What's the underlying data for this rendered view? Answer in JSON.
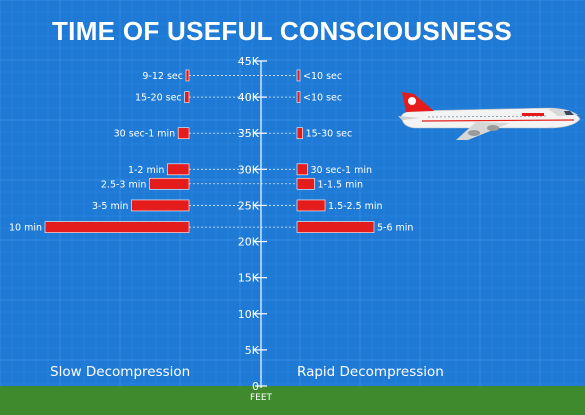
{
  "title": "TIME OF USEFUL CONSCIOUSNESS",
  "panels": {
    "left_label": "Slow Decompression",
    "right_label": "Rapid Decompression"
  },
  "colors": {
    "sky": "#1f7ad6",
    "grid": "#3b93e6",
    "bar": "#e41c1c",
    "text": "#ffffff",
    "ground": "#3f8a2c"
  },
  "icons": {
    "airplane": "jet-airliner-icon"
  },
  "chart_data": {
    "type": "bar",
    "title": "TIME OF USEFUL CONSCIOUSNESS",
    "axis": {
      "label": "FEET",
      "range": [
        0,
        45000
      ],
      "ticks": [
        {
          "value": 0,
          "label": "0"
        },
        {
          "value": 5000,
          "label": "5K"
        },
        {
          "value": 10000,
          "label": "10K"
        },
        {
          "value": 15000,
          "label": "15K"
        },
        {
          "value": 20000,
          "label": "20K"
        },
        {
          "value": 25000,
          "label": "25K"
        },
        {
          "value": 30000,
          "label": "30K"
        },
        {
          "value": 35000,
          "label": "35K"
        },
        {
          "value": 40000,
          "label": "40K"
        },
        {
          "value": 45000,
          "label": "45K"
        }
      ]
    },
    "series": [
      {
        "name": "Slow Decompression",
        "points": [
          {
            "altitude": 43000,
            "label": "9-12 sec",
            "minutes": 0.2
          },
          {
            "altitude": 40000,
            "label": "15-20 sec",
            "minutes": 0.3
          },
          {
            "altitude": 35000,
            "label": "30 sec-1 min",
            "minutes": 0.75
          },
          {
            "altitude": 30000,
            "label": "1-2 min",
            "minutes": 1.5
          },
          {
            "altitude": 28000,
            "label": "2.5-3 min",
            "minutes": 2.75
          },
          {
            "altitude": 25000,
            "label": "3-5 min",
            "minutes": 4
          },
          {
            "altitude": 22000,
            "label": "10 min",
            "minutes": 10
          }
        ]
      },
      {
        "name": "Rapid Decompression",
        "points": [
          {
            "altitude": 43000,
            "label": "<10 sec",
            "minutes": 0.15
          },
          {
            "altitude": 40000,
            "label": "<10 sec",
            "minutes": 0.15
          },
          {
            "altitude": 35000,
            "label": "15-30 sec",
            "minutes": 0.4
          },
          {
            "altitude": 30000,
            "label": "30 sec-1 min",
            "minutes": 0.75
          },
          {
            "altitude": 28000,
            "label": "1-1.5 min",
            "minutes": 1.25
          },
          {
            "altitude": 25000,
            "label": "1.5-2.5 min",
            "minutes": 2
          },
          {
            "altitude": 22000,
            "label": "5-6 min",
            "minutes": 5.5
          }
        ]
      }
    ]
  }
}
